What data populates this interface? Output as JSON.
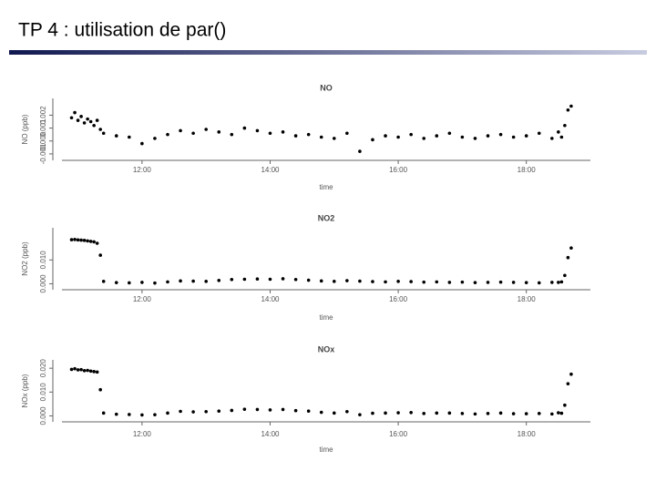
{
  "title": "TP 4 : utilisation de par()",
  "chart_data": [
    {
      "type": "scatter",
      "title": "NO",
      "x_label": "time",
      "y_label": "NO (ppb)",
      "color": "#000000",
      "x": [
        10.9,
        10.95,
        11.0,
        11.05,
        11.1,
        11.15,
        11.2,
        11.25,
        11.3,
        11.35,
        11.4,
        11.6,
        11.8,
        12.0,
        12.2,
        12.4,
        12.6,
        12.8,
        13.0,
        13.2,
        13.4,
        13.6,
        13.8,
        14.0,
        14.2,
        14.4,
        14.6,
        14.8,
        15.0,
        15.2,
        15.4,
        15.6,
        15.8,
        16.0,
        16.2,
        16.4,
        16.6,
        16.8,
        17.0,
        17.2,
        17.4,
        17.6,
        17.8,
        18.0,
        18.2,
        18.4,
        18.5,
        18.55,
        18.6,
        18.65,
        18.7
      ],
      "values": [
        0.0018,
        0.0022,
        0.0016,
        0.0019,
        0.0014,
        0.0017,
        0.0015,
        0.0012,
        0.0016,
        0.0009,
        0.0006,
        0.0004,
        0.0003,
        -0.0002,
        0.0002,
        0.0005,
        0.0008,
        0.0006,
        0.0009,
        0.0007,
        0.0005,
        0.001,
        0.0008,
        0.0006,
        0.0007,
        0.0004,
        0.0005,
        0.0003,
        0.0002,
        0.0006,
        -0.0008,
        0.0001,
        0.0004,
        0.0003,
        0.0005,
        0.0002,
        0.0004,
        0.0006,
        0.0003,
        0.0002,
        0.0004,
        0.0005,
        0.0003,
        0.0004,
        0.0006,
        0.0002,
        0.0007,
        0.0003,
        0.0012,
        0.0024,
        0.0027
      ],
      "xlim": [
        10.75,
        19.0
      ],
      "xticks": [
        {
          "value": 12,
          "label": "12:00"
        },
        {
          "value": 14,
          "label": "14:00"
        },
        {
          "value": 16,
          "label": "16:00"
        },
        {
          "value": 18,
          "label": "18:00"
        }
      ],
      "ylim": [
        -0.0015,
        0.0033
      ],
      "yticks": [
        -0.001,
        {
          "value": 0,
          "label": "0.000"
        },
        0.001,
        0.002
      ]
    },
    {
      "type": "scatter",
      "title": "NO2",
      "x_label": "time",
      "y_label": "NO2 (ppb)",
      "color": "#000000",
      "x": [
        10.9,
        10.95,
        11.0,
        11.05,
        11.1,
        11.15,
        11.2,
        11.25,
        11.3,
        11.35,
        11.4,
        11.6,
        11.8,
        12.0,
        12.2,
        12.4,
        12.6,
        12.8,
        13.0,
        13.2,
        13.4,
        13.6,
        13.8,
        14.0,
        14.2,
        14.4,
        14.6,
        14.8,
        15.0,
        15.2,
        15.4,
        15.6,
        15.8,
        16.0,
        16.2,
        16.4,
        16.6,
        16.8,
        17.0,
        17.2,
        17.4,
        17.6,
        17.8,
        18.0,
        18.2,
        18.4,
        18.5,
        18.55,
        18.6,
        18.65,
        18.7
      ],
      "values": [
        0.0185,
        0.0186,
        0.0184,
        0.0183,
        0.0182,
        0.018,
        0.0178,
        0.0176,
        0.017,
        0.012,
        0.001,
        0.0005,
        0.0004,
        0.0006,
        0.0003,
        0.0008,
        0.0012,
        0.0011,
        0.001,
        0.0014,
        0.0018,
        0.0019,
        0.002,
        0.0019,
        0.0021,
        0.0018,
        0.0015,
        0.0012,
        0.001,
        0.0013,
        0.0011,
        0.0009,
        0.0008,
        0.001,
        0.0009,
        0.0007,
        0.0008,
        0.0006,
        0.0007,
        0.0005,
        0.0006,
        0.0007,
        0.0006,
        0.0005,
        0.0004,
        0.0006,
        0.0006,
        0.0008,
        0.0035,
        0.011,
        0.015
      ],
      "xlim": [
        10.75,
        19.0
      ],
      "xticks": [
        {
          "value": 12,
          "label": "12:00"
        },
        {
          "value": 14,
          "label": "14:00"
        },
        {
          "value": 16,
          "label": "16:00"
        },
        {
          "value": 18,
          "label": "18:00"
        }
      ],
      "ylim": [
        -0.0025,
        0.0235
      ],
      "yticks": [
        {
          "value": 0,
          "label": "0.000"
        },
        {
          "value": 0.01,
          "label": "0.010"
        }
      ]
    },
    {
      "type": "scatter",
      "title": "NOx",
      "x_label": "time",
      "y_label": "NOx (ppb)",
      "color": "#000000",
      "x": [
        10.9,
        10.95,
        11.0,
        11.05,
        11.1,
        11.15,
        11.2,
        11.25,
        11.3,
        11.35,
        11.4,
        11.6,
        11.8,
        12.0,
        12.2,
        12.4,
        12.6,
        12.8,
        13.0,
        13.2,
        13.4,
        13.6,
        13.8,
        14.0,
        14.2,
        14.4,
        14.6,
        14.8,
        15.0,
        15.2,
        15.4,
        15.6,
        15.8,
        16.0,
        16.2,
        16.4,
        16.6,
        16.8,
        17.0,
        17.2,
        17.4,
        17.6,
        17.8,
        18.0,
        18.2,
        18.4,
        18.5,
        18.55,
        18.6,
        18.65,
        18.7
      ],
      "values": [
        0.0195,
        0.0198,
        0.0193,
        0.0194,
        0.019,
        0.0191,
        0.0188,
        0.0186,
        0.0184,
        0.011,
        0.0012,
        0.0007,
        0.0006,
        0.0004,
        0.0005,
        0.0012,
        0.0019,
        0.0017,
        0.0018,
        0.002,
        0.0023,
        0.0028,
        0.0027,
        0.0025,
        0.0027,
        0.0022,
        0.002,
        0.0015,
        0.0012,
        0.0018,
        0.0005,
        0.0011,
        0.0012,
        0.0013,
        0.0014,
        0.001,
        0.0012,
        0.0012,
        0.001,
        0.0008,
        0.001,
        0.0012,
        0.0009,
        0.0009,
        0.001,
        0.0008,
        0.0013,
        0.0011,
        0.0045,
        0.0135,
        0.0175
      ],
      "xlim": [
        10.75,
        19.0
      ],
      "xticks": [
        {
          "value": 12,
          "label": "12:00"
        },
        {
          "value": 14,
          "label": "14:00"
        },
        {
          "value": 16,
          "label": "16:00"
        },
        {
          "value": 18,
          "label": "18:00"
        }
      ],
      "ylim": [
        -0.0025,
        0.0235
      ],
      "yticks": [
        {
          "value": 0,
          "label": "0.000"
        },
        {
          "value": 0.01,
          "label": "0.010"
        },
        {
          "value": 0.02,
          "label": "0.020"
        }
      ]
    }
  ]
}
